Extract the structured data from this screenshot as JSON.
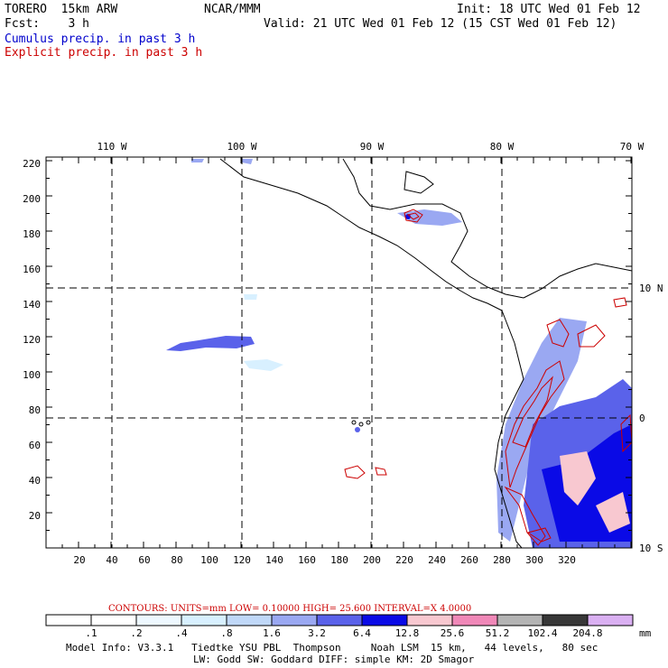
{
  "header": {
    "model": "TORERO  15km ARW",
    "org": "NCAR/MMM",
    "init": "Init: 18 UTC Wed 01 Feb 12",
    "fcst": "Fcst:    3 h",
    "valid": "Valid: 21 UTC Wed 01 Feb 12 (15 CST Wed 01 Feb 12)",
    "field1": "Cumulus precip. in past 3 h",
    "field2": "Explicit precip. in past 3 h"
  },
  "colors": {
    "field1": "#0000cc",
    "field2": "#cc0000",
    "coast": "#000000",
    "grid": "#000000"
  },
  "axes": {
    "lon_labels": [
      "110 W",
      "100 W",
      "90 W",
      "80 W",
      "70 W"
    ],
    "lat_labels": [
      "10 N",
      "0",
      "10 S"
    ],
    "y_ticks": [
      "220",
      "200",
      "180",
      "160",
      "140",
      "120",
      "100",
      "80",
      "60",
      "40",
      "20"
    ],
    "x_ticks": [
      "20",
      "40",
      "60",
      "80",
      "100",
      "120",
      "140",
      "160",
      "180",
      "200",
      "220",
      "240",
      "260",
      "280",
      "300",
      "320"
    ]
  },
  "contours": {
    "label": "CONTOURS:  UNITS=mm  LOW= 0.10000     HIGH=  25.600     INTERVAL=X  4.0000"
  },
  "colorbar": {
    "unit": "mm",
    "labels": [
      ".1",
      ".2",
      ".4",
      ".8",
      "1.6",
      "3.2",
      "6.4",
      "12.8",
      "25.6",
      "51.2",
      "102.4",
      "204.8"
    ],
    "colors": [
      "#ffffff",
      "#ffffff",
      "#eef8ff",
      "#d8f0ff",
      "#c0d8f8",
      "#9aa8f2",
      "#5a62ea",
      "#0a0ae6",
      "#f8c8d0",
      "#f088b8",
      "#b4b4b4",
      "#383838",
      "#dab0f2"
    ]
  },
  "footer": {
    "line1": "Model Info: V3.3.1   Tiedtke YSU PBL  Thompson     Noah LSM  15 km,   44 levels,   80 sec",
    "line2": "LW: Godd SW: Goddard DIFF: simple KM: 2D Smagor"
  }
}
